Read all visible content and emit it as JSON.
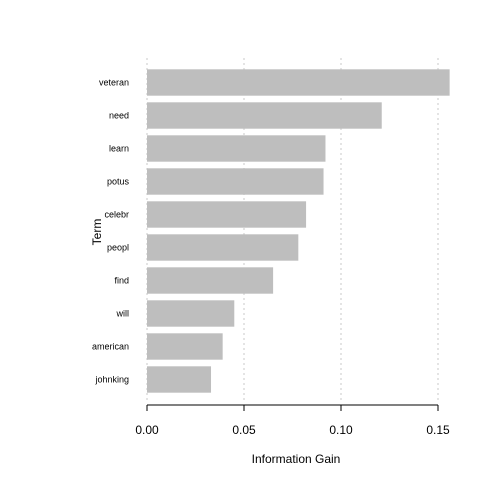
{
  "chart_data": {
    "type": "bar",
    "orientation": "horizontal",
    "categories": [
      "veteran",
      "need",
      "learn",
      "potus",
      "celebr",
      "peopl",
      "find",
      "will",
      "american",
      "johnking"
    ],
    "values": [
      0.156,
      0.121,
      0.092,
      0.091,
      0.082,
      0.078,
      0.065,
      0.045,
      0.039,
      0.033
    ],
    "xlabel": "Information Gain",
    "ylabel": "Term",
    "xlim": [
      0,
      0.16
    ],
    "xticks": [
      0.0,
      0.05,
      0.1,
      0.15
    ],
    "xtick_labels": [
      "0.00",
      "0.05",
      "0.10",
      "0.15"
    ],
    "grid": "vertical-dashed",
    "bar_color": "#bebebe"
  }
}
